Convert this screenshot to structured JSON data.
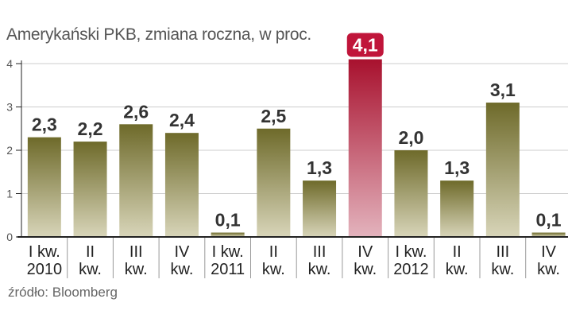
{
  "title": "Amerykański PKB, zmiana roczna, w proc.",
  "source": "źródło: Bloomberg",
  "colors": {
    "bar_top": "#6e6a2a",
    "bar_bottom": "#d8d5b9",
    "highlight_top": "#a8112e",
    "highlight_bottom": "#e3b3bd",
    "highlight_badge": "#c0153a",
    "axis": "#222222",
    "grid": "#cccccc"
  },
  "chart_data": {
    "type": "bar",
    "categories": [
      [
        "I kw.",
        "2010"
      ],
      [
        "II",
        "kw."
      ],
      [
        "III",
        "kw."
      ],
      [
        "IV",
        "kw."
      ],
      [
        "I kw.",
        "2011"
      ],
      [
        "II",
        "kw."
      ],
      [
        "III",
        "kw."
      ],
      [
        "IV",
        "kw."
      ],
      [
        "I kw.",
        "2012"
      ],
      [
        "II",
        "kw."
      ],
      [
        "III",
        "kw."
      ],
      [
        "IV",
        "kw."
      ]
    ],
    "values": [
      2.3,
      2.2,
      2.6,
      2.4,
      0.1,
      2.5,
      1.3,
      4.1,
      2.0,
      1.3,
      3.1,
      0.1
    ],
    "value_labels": [
      "2,3",
      "2,2",
      "2,6",
      "2,4",
      "0,1",
      "2,5",
      "1,3",
      "4,1",
      "2,0",
      "1,3",
      "3,1",
      "0,1"
    ],
    "highlight_index": 7,
    "yticks": [
      "0",
      "1",
      "2",
      "3",
      "4"
    ],
    "ylim": [
      0,
      4
    ],
    "grid": true,
    "xlabel": "",
    "ylabel": ""
  }
}
